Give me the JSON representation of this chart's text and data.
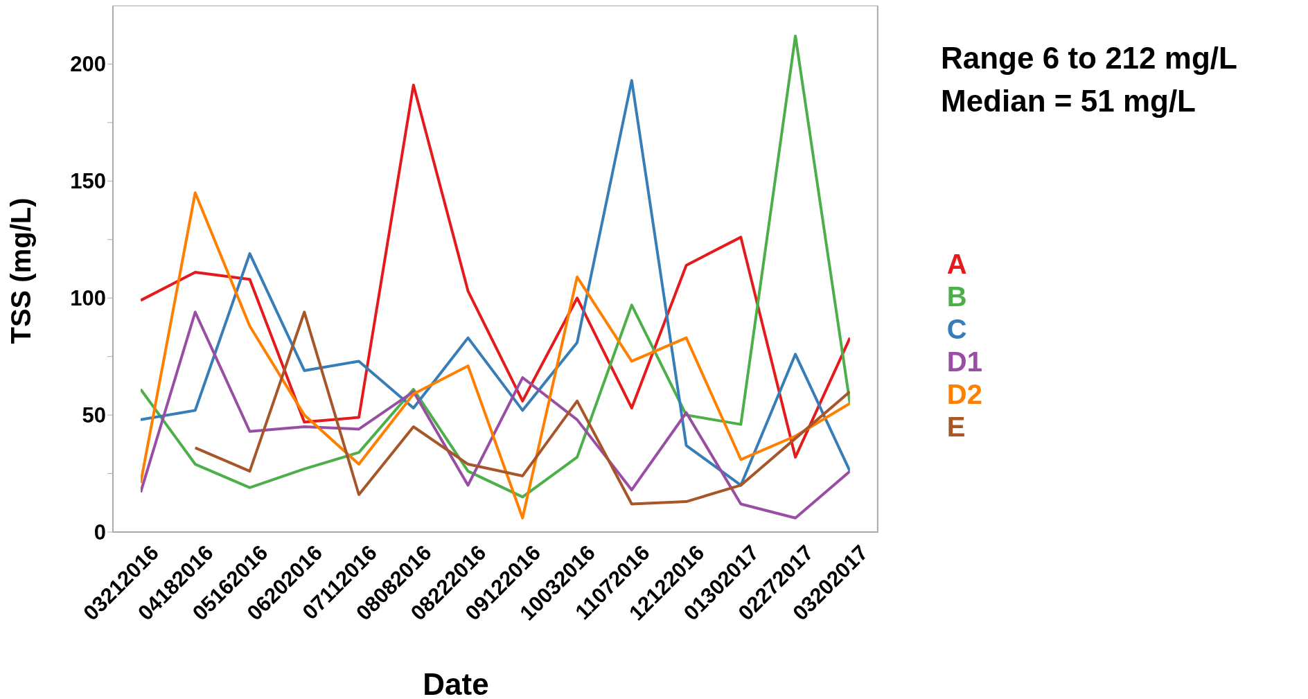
{
  "chart_data": {
    "type": "line",
    "xlabel": "Date",
    "ylabel": "TSS (mg/L)",
    "annotations": [
      "Range 6 to 212 mg/L",
      "Median = 51 mg/L"
    ],
    "categories": [
      "03212016",
      "04182016",
      "05162016",
      "06202016",
      "07112016",
      "08082016",
      "08222016",
      "09122016",
      "10032016",
      "11072016",
      "12122016",
      "01302017",
      "02272017",
      "03202017"
    ],
    "ylim": [
      0,
      225
    ],
    "yticks": [
      0,
      {
        "value": 25,
        "label": null
      },
      50,
      {
        "value": 75,
        "label": null
      },
      100,
      {
        "value": 125,
        "label": null
      },
      150,
      {
        "value": 175,
        "label": null
      },
      200
    ],
    "legend": "right",
    "marker": "none",
    "line_style": "solid",
    "series": [
      {
        "name": "A",
        "color": "#e41a1c",
        "values": [
          99,
          111,
          108,
          47,
          49,
          191,
          103,
          56,
          100,
          53,
          114,
          126,
          32,
          83
        ]
      },
      {
        "name": "B",
        "color": "#4daf4a",
        "values": [
          61,
          29,
          19,
          27,
          34,
          61,
          26,
          15,
          32,
          97,
          50,
          46,
          212,
          55
        ]
      },
      {
        "name": "C",
        "color": "#377eb8",
        "values": [
          48,
          52,
          119,
          69,
          73,
          53,
          83,
          52,
          81,
          193,
          37,
          20,
          76,
          26
        ]
      },
      {
        "name": "D1",
        "color": "#984ea3",
        "values": [
          17,
          94,
          43,
          45,
          44,
          60,
          20,
          66,
          48,
          18,
          51,
          12,
          6,
          26
        ]
      },
      {
        "name": "D2",
        "color": "#ff7f00",
        "values": [
          21,
          145,
          88,
          50,
          29,
          59,
          71,
          6,
          109,
          73,
          83,
          31,
          41,
          55
        ]
      },
      {
        "name": "E",
        "color": "#a65628",
        "values": [
          null,
          36,
          26,
          94,
          16,
          45,
          29,
          24,
          56,
          12,
          13,
          20,
          40,
          60
        ]
      }
    ]
  }
}
